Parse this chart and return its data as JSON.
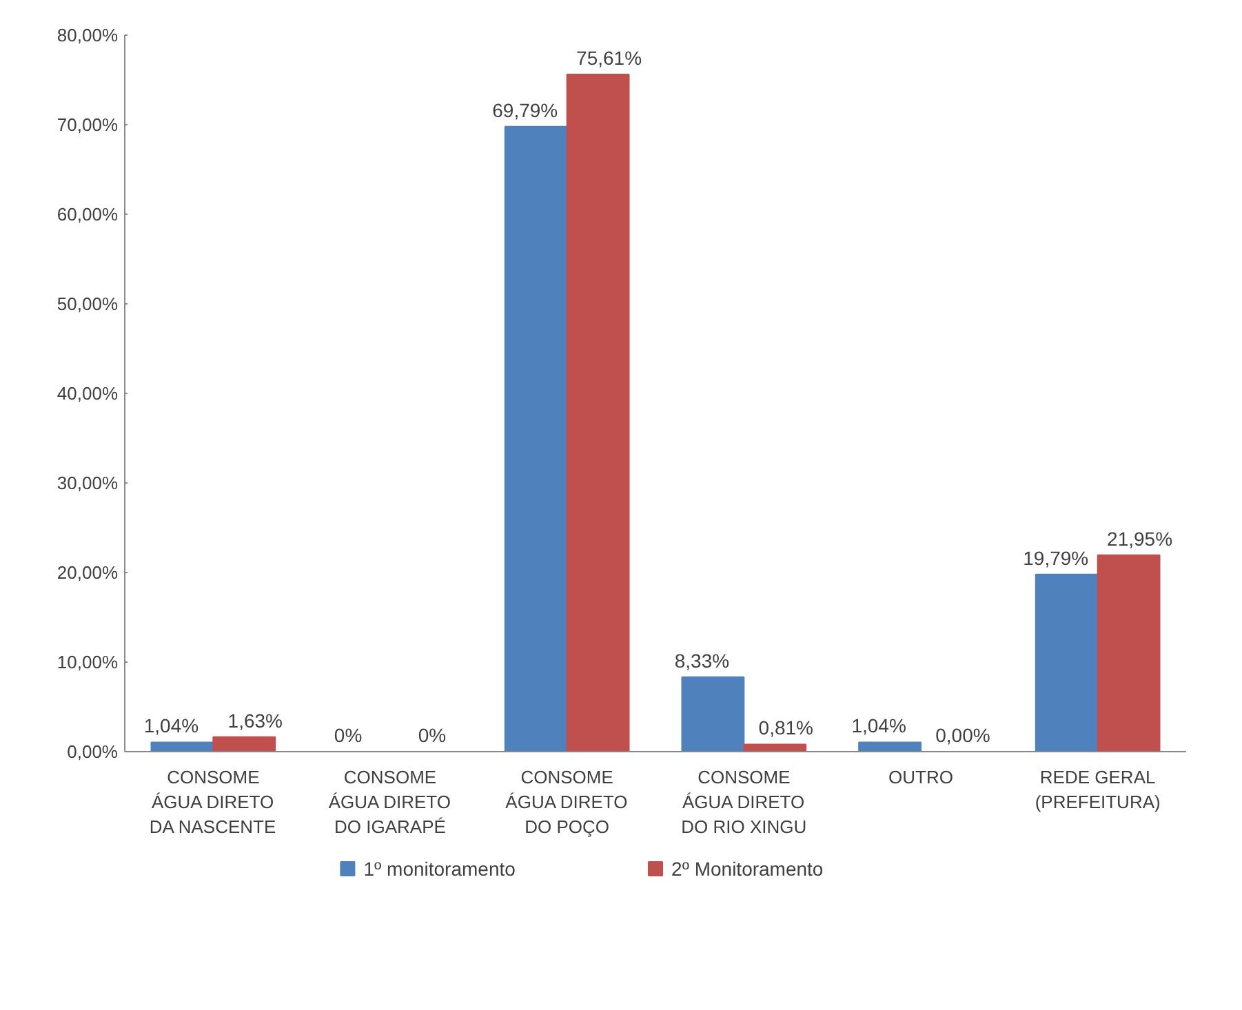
{
  "chart_data": {
    "type": "bar",
    "categories": [
      "CONSOME\nÁGUA DIRETO\nDA NASCENTE",
      "CONSOME\nÁGUA DIRETO\nDO IGARAPÉ",
      "CONSOME\nÁGUA DIRETO\nDO POÇO",
      "CONSOME\nÁGUA DIRETO\nDO RIO XINGU",
      "OUTRO",
      "REDE GERAL\n(PREFEITURA)"
    ],
    "series": [
      {
        "name": "1º monitoramento",
        "color": "#4f81bd",
        "values": [
          1.04,
          0,
          69.79,
          8.33,
          1.04,
          19.79
        ],
        "value_labels": [
          "1,04%",
          "0%",
          "69,79%",
          "8,33%",
          "1,04%",
          "19,79%"
        ]
      },
      {
        "name": "2º Monitoramento",
        "color": "#c0504d",
        "values": [
          1.63,
          0,
          75.61,
          0.81,
          0,
          21.95
        ],
        "value_labels": [
          "1,63%",
          "0%",
          "75,61%",
          "0,81%",
          "0,00%",
          "21,95%"
        ]
      }
    ],
    "ylim": [
      0,
      80
    ],
    "yticks": [
      {
        "value": 0,
        "label": "0,00%"
      },
      {
        "value": 10,
        "label": "10,00%"
      },
      {
        "value": 20,
        "label": "20,00%"
      },
      {
        "value": 30,
        "label": "30,00%"
      },
      {
        "value": 40,
        "label": "40,00%"
      },
      {
        "value": 50,
        "label": "50,00%"
      },
      {
        "value": 60,
        "label": "60,00%"
      },
      {
        "value": 70,
        "label": "70,00%"
      },
      {
        "value": 80,
        "label": "80,00%"
      }
    ],
    "grid": false,
    "legend": "bottom"
  }
}
